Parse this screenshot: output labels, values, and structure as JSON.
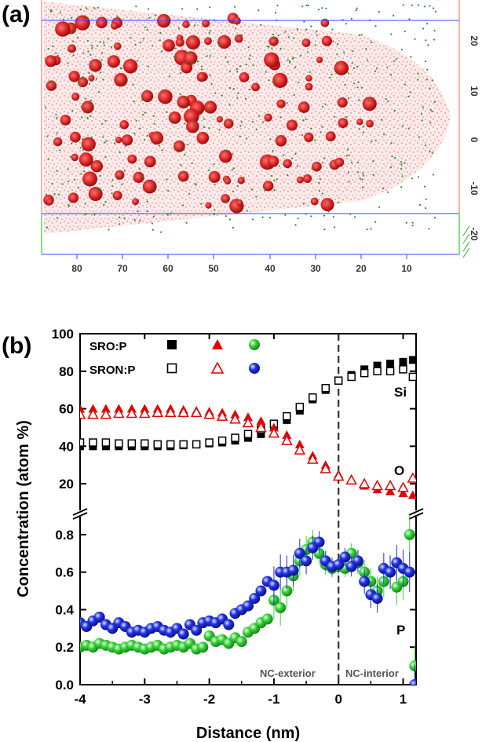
{
  "panel_a": {
    "label": "(a)",
    "x_ticks": [
      "80",
      "70",
      "60",
      "50",
      "40",
      "30",
      "20",
      "10"
    ],
    "y_ticks": [
      "20",
      "10",
      "0",
      "-10",
      "-20"
    ],
    "colors": {
      "matrix": "#f08080",
      "cluster": "#d42020",
      "dopant": "#2e8b2e"
    }
  },
  "panel_b": {
    "label": "(b)"
  },
  "chart_data": {
    "type": "scatter",
    "title": "",
    "xlabel": "Distance (nm)",
    "ylabel": "Concentration (atom %)",
    "xlim": [
      -4,
      1.2
    ],
    "x_ticks": [
      "-4",
      "-3",
      "-2",
      "-1",
      "0",
      "1"
    ],
    "upper_segment": {
      "ylim": [
        10,
        100
      ],
      "y_ticks": [
        "20",
        "40",
        "60",
        "80",
        "100"
      ]
    },
    "lower_segment": {
      "ylim": [
        0,
        0.9
      ],
      "y_ticks": [
        "0.0",
        "0.2",
        "0.4",
        "0.6",
        "0.8"
      ]
    },
    "legend": {
      "rows": [
        {
          "label": "SRO:P",
          "style": "filled"
        },
        {
          "label": "SRON:P",
          "style": "open"
        }
      ]
    },
    "element_labels": {
      "si": "Si",
      "o": "O",
      "p": "P"
    },
    "region_labels": {
      "exterior": "NC-exterior",
      "interior": "NC-interior"
    },
    "interface_x": 0,
    "series": [
      {
        "name": "Si (SRO:P)",
        "segment": "upper",
        "marker": "square-filled",
        "color": "#000000",
        "x": [
          -4,
          -3.8,
          -3.6,
          -3.4,
          -3.2,
          -3,
          -2.8,
          -2.6,
          -2.4,
          -2.2,
          -2,
          -1.8,
          -1.6,
          -1.4,
          -1.2,
          -1,
          -0.8,
          -0.6,
          -0.4,
          -0.2,
          0,
          0.2,
          0.4,
          0.6,
          0.8,
          1,
          1.15
        ],
        "y": [
          40,
          40,
          40,
          40,
          40,
          40,
          40,
          40,
          40.5,
          41,
          41.5,
          42,
          43,
          44.5,
          46.5,
          50,
          54,
          59,
          65,
          70,
          75,
          78,
          81,
          83,
          84,
          85,
          86
        ]
      },
      {
        "name": "Si (SRON:P)",
        "segment": "upper",
        "marker": "square-open",
        "color": "#000000",
        "x": [
          -4,
          -3.8,
          -3.6,
          -3.4,
          -3.2,
          -3,
          -2.8,
          -2.6,
          -2.4,
          -2.2,
          -2,
          -1.8,
          -1.6,
          -1.4,
          -1.2,
          -1,
          -0.8,
          -0.6,
          -0.4,
          -0.2,
          0,
          0.2,
          0.4,
          0.6,
          0.8,
          1,
          1.15
        ],
        "y": [
          42,
          42,
          42,
          41.5,
          41.5,
          41.5,
          41,
          41,
          41,
          41,
          42,
          43,
          44.5,
          46.5,
          49,
          52,
          56,
          61,
          66,
          71,
          75,
          77,
          79,
          80,
          80,
          81,
          77
        ]
      },
      {
        "name": "O (SRO:P)",
        "segment": "upper",
        "marker": "triangle-filled",
        "color": "#e00000",
        "x": [
          -4,
          -3.8,
          -3.6,
          -3.4,
          -3.2,
          -3,
          -2.8,
          -2.6,
          -2.4,
          -2.2,
          -2,
          -1.8,
          -1.6,
          -1.4,
          -1.2,
          -1,
          -0.8,
          -0.6,
          -0.4,
          -0.2,
          0,
          0.2,
          0.4,
          0.6,
          0.8,
          1,
          1.15
        ],
        "y": [
          60,
          60,
          60,
          60,
          60,
          60,
          60,
          60,
          59.5,
          59,
          58.5,
          58,
          57,
          55.5,
          53.5,
          50,
          46,
          41,
          35,
          30,
          25,
          22,
          19,
          17,
          16,
          15,
          14
        ]
      },
      {
        "name": "O (SRON:P)",
        "segment": "upper",
        "marker": "triangle-open",
        "color": "#e00000",
        "x": [
          -4,
          -3.8,
          -3.6,
          -3.4,
          -3.2,
          -3,
          -2.8,
          -2.6,
          -2.4,
          -2.2,
          -2,
          -1.8,
          -1.6,
          -1.4,
          -1.2,
          -1,
          -0.8,
          -0.6,
          -0.4,
          -0.2,
          0,
          0.2,
          0.4,
          0.6,
          0.8,
          1,
          1.15
        ],
        "y": [
          57,
          57,
          57,
          57.5,
          57.5,
          57.5,
          58,
          58,
          58,
          58,
          57,
          56,
          54.5,
          52.5,
          50,
          47,
          43,
          38,
          33,
          28,
          24,
          22,
          20,
          19,
          19,
          18,
          23
        ]
      },
      {
        "name": "P (SRO:P)",
        "segment": "lower",
        "marker": "sphere",
        "color": "#3cd23c",
        "x": [
          -4,
          -3.9,
          -3.8,
          -3.7,
          -3.6,
          -3.5,
          -3.4,
          -3.3,
          -3.2,
          -3.1,
          -3,
          -2.9,
          -2.8,
          -2.7,
          -2.6,
          -2.5,
          -2.4,
          -2.3,
          -2.2,
          -2.1,
          -2,
          -1.9,
          -1.8,
          -1.7,
          -1.6,
          -1.5,
          -1.4,
          -1.3,
          -1.2,
          -1.1,
          -1,
          -0.9,
          -0.8,
          -0.7,
          -0.6,
          -0.5,
          -0.4,
          -0.3,
          -0.2,
          -0.1,
          0,
          0.1,
          0.2,
          0.3,
          0.4,
          0.5,
          0.6,
          0.7,
          0.8,
          0.9,
          1,
          1.1,
          1.18
        ],
        "y": [
          0.2,
          0.21,
          0.2,
          0.22,
          0.21,
          0.2,
          0.19,
          0.2,
          0.21,
          0.2,
          0.19,
          0.2,
          0.21,
          0.19,
          0.2,
          0.21,
          0.2,
          0.22,
          0.19,
          0.2,
          0.26,
          0.23,
          0.24,
          0.22,
          0.25,
          0.23,
          0.28,
          0.3,
          0.33,
          0.35,
          0.45,
          0.41,
          0.5,
          0.58,
          0.66,
          0.72,
          0.76,
          0.7,
          0.64,
          0.62,
          0.63,
          0.62,
          0.7,
          0.65,
          0.6,
          0.55,
          0.5,
          0.55,
          0.6,
          0.52,
          0.55,
          0.8,
          0.1
        ]
      },
      {
        "name": "P (SRON:P)",
        "segment": "lower",
        "marker": "sphere",
        "color": "#1c2ee0",
        "x": [
          -4,
          -3.9,
          -3.8,
          -3.7,
          -3.6,
          -3.5,
          -3.4,
          -3.3,
          -3.2,
          -3.1,
          -3,
          -2.9,
          -2.8,
          -2.7,
          -2.6,
          -2.5,
          -2.4,
          -2.3,
          -2.2,
          -2.1,
          -2,
          -1.9,
          -1.8,
          -1.7,
          -1.6,
          -1.5,
          -1.4,
          -1.3,
          -1.2,
          -1.1,
          -1,
          -0.9,
          -0.8,
          -0.7,
          -0.6,
          -0.5,
          -0.4,
          -0.3,
          -0.2,
          -0.1,
          0,
          0.1,
          0.2,
          0.3,
          0.4,
          0.5,
          0.6,
          0.7,
          0.8,
          0.9,
          1,
          1.1,
          1.18
        ],
        "y": [
          0.33,
          0.31,
          0.34,
          0.36,
          0.32,
          0.3,
          0.33,
          0.31,
          0.28,
          0.29,
          0.28,
          0.3,
          0.31,
          0.29,
          0.28,
          0.3,
          0.27,
          0.32,
          0.29,
          0.33,
          0.34,
          0.33,
          0.35,
          0.32,
          0.38,
          0.4,
          0.42,
          0.46,
          0.5,
          0.55,
          0.53,
          0.6,
          0.6,
          0.61,
          0.7,
          0.66,
          0.73,
          0.76,
          0.66,
          0.63,
          0.64,
          0.68,
          0.63,
          0.66,
          0.55,
          0.48,
          0.46,
          0.62,
          0.6,
          0.65,
          0.62,
          0.6,
          0.0
        ]
      }
    ]
  }
}
